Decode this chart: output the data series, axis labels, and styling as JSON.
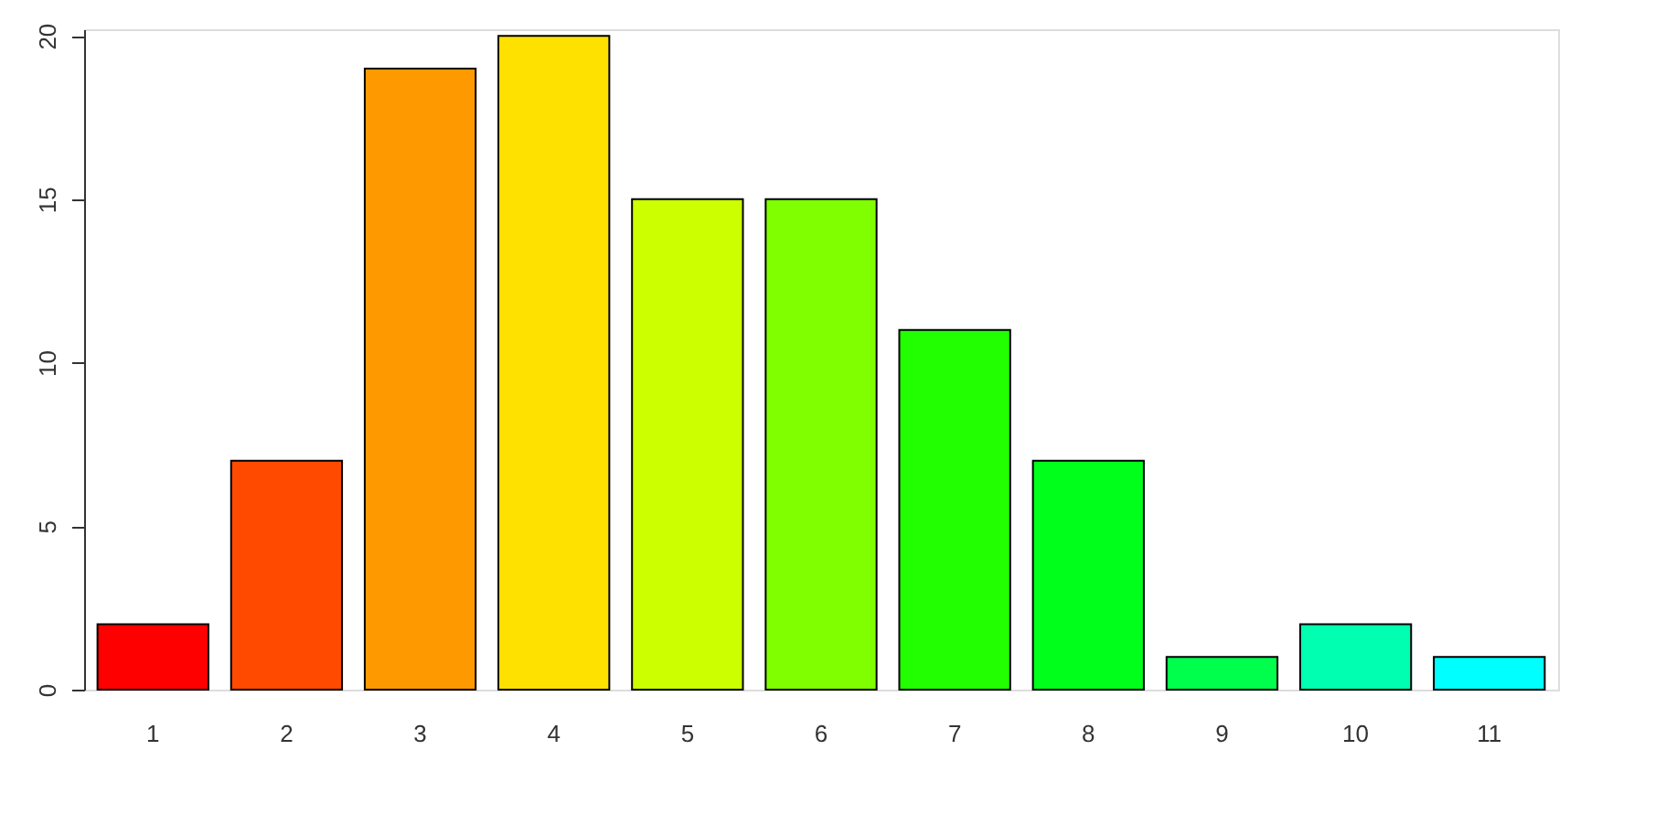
{
  "chart_data": {
    "type": "bar",
    "categories": [
      "1",
      "2",
      "3",
      "4",
      "5",
      "6",
      "7",
      "8",
      "9",
      "10",
      "11"
    ],
    "values": [
      2,
      7,
      19,
      20,
      15,
      15,
      11,
      7,
      1,
      2,
      1
    ],
    "colors": [
      "#ff0000",
      "#ff4a00",
      "#ff9900",
      "#ffe100",
      "#ccff00",
      "#80ff00",
      "#22ff00",
      "#00ff1a",
      "#00ff4d",
      "#00ffb0",
      "#00ffff"
    ],
    "ylim": [
      0,
      20.2
    ],
    "yticks": [
      0,
      5,
      10,
      15,
      20
    ],
    "grid": false
  }
}
